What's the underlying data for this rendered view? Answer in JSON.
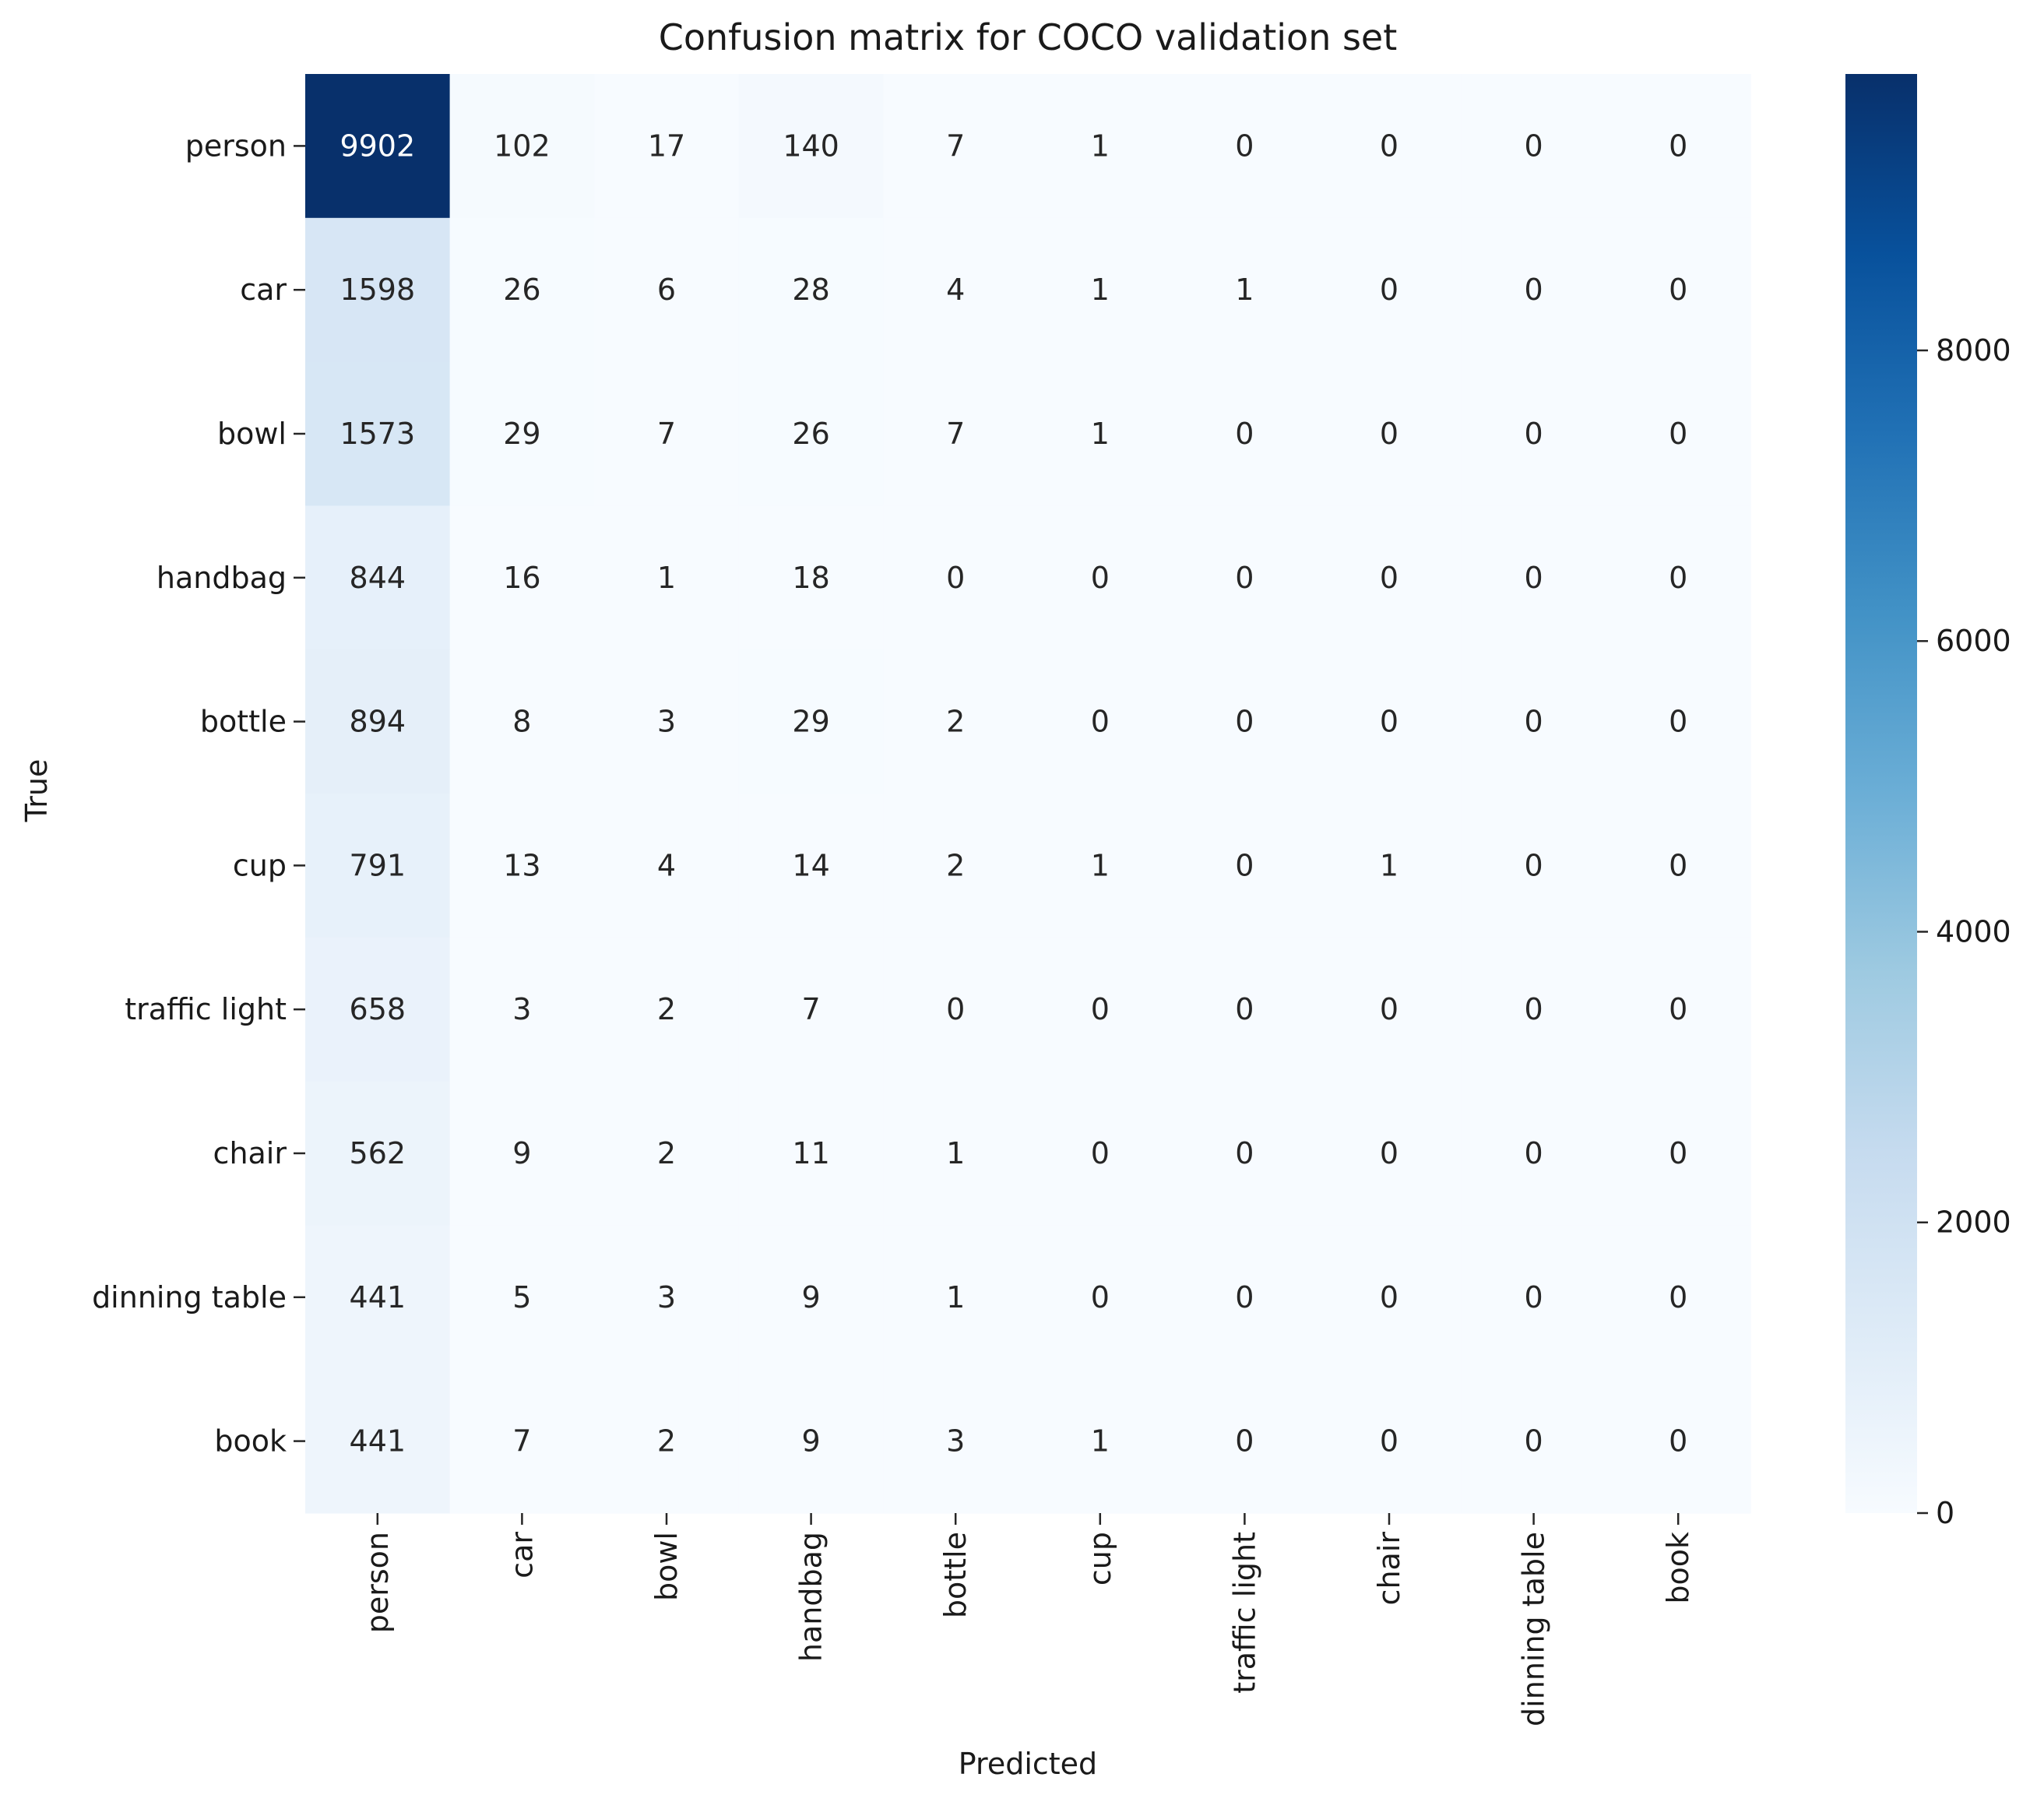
{
  "chart_data": {
    "type": "heatmap",
    "title": "Confusion matrix for COCO validation set",
    "xlabel": "Predicted",
    "ylabel": "True",
    "x_categories": [
      "person",
      "car",
      "bowl",
      "handbag",
      "bottle",
      "cup",
      "traffic light",
      "chair",
      "dinning table",
      "book"
    ],
    "y_categories": [
      "person",
      "car",
      "bowl",
      "handbag",
      "bottle",
      "cup",
      "traffic light",
      "chair",
      "dinning table",
      "book"
    ],
    "values": [
      [
        9902,
        102,
        17,
        140,
        7,
        1,
        0,
        0,
        0,
        0
      ],
      [
        1598,
        26,
        6,
        28,
        4,
        1,
        1,
        0,
        0,
        0
      ],
      [
        1573,
        29,
        7,
        26,
        7,
        1,
        0,
        0,
        0,
        0
      ],
      [
        844,
        16,
        1,
        18,
        0,
        0,
        0,
        0,
        0,
        0
      ],
      [
        894,
        8,
        3,
        29,
        2,
        0,
        0,
        0,
        0,
        0
      ],
      [
        791,
        13,
        4,
        14,
        2,
        1,
        0,
        1,
        0,
        0
      ],
      [
        658,
        3,
        2,
        7,
        0,
        0,
        0,
        0,
        0,
        0
      ],
      [
        562,
        9,
        2,
        11,
        1,
        0,
        0,
        0,
        0,
        0
      ],
      [
        441,
        5,
        3,
        9,
        1,
        0,
        0,
        0,
        0,
        0
      ],
      [
        441,
        7,
        2,
        9,
        3,
        1,
        0,
        0,
        0,
        0
      ]
    ],
    "colormap": "Blues",
    "colorbar": {
      "ticks": [
        0,
        2000,
        4000,
        6000,
        8000
      ],
      "range": [
        0,
        9902
      ]
    },
    "grid": false
  }
}
